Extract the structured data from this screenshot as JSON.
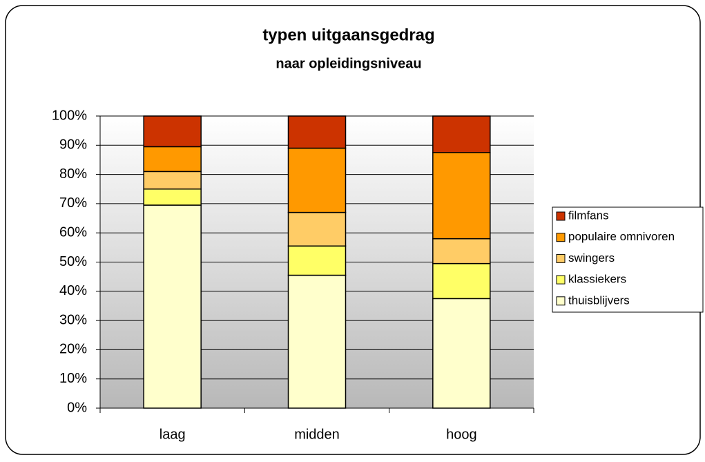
{
  "chart_data": {
    "type": "stacked_bar",
    "title": "typen uitgaansgedrag",
    "subtitle": "naar opleidingsniveau",
    "categories": [
      "laag",
      "midden",
      "hoog"
    ],
    "series": [
      {
        "name": "thuisblijvers",
        "color": "#FFFFCC",
        "values": [
          69.5,
          45.5,
          37.5
        ]
      },
      {
        "name": "klassiekers",
        "color": "#FFFF66",
        "values": [
          5.5,
          10,
          12
        ]
      },
      {
        "name": "swingers",
        "color": "#FFCC66",
        "values": [
          6,
          11.5,
          8.5
        ]
      },
      {
        "name": "populaire omnivoren",
        "color": "#FF9900",
        "values": [
          8.5,
          22,
          29.5
        ]
      },
      {
        "name": "filmfans",
        "color": "#CC3300",
        "values": [
          10.5,
          11,
          12.5
        ]
      }
    ],
    "ylim": [
      0,
      100
    ],
    "yticks": [
      {
        "value": 0,
        "label": "0%"
      },
      {
        "value": 10,
        "label": "10%"
      },
      {
        "value": 20,
        "label": "20%"
      },
      {
        "value": 30,
        "label": "30%"
      },
      {
        "value": 40,
        "label": "40%"
      },
      {
        "value": 50,
        "label": "50%"
      },
      {
        "value": 60,
        "label": "60%"
      },
      {
        "value": 70,
        "label": "70%"
      },
      {
        "value": 80,
        "label": "80%"
      },
      {
        "value": 90,
        "label": "90%"
      },
      {
        "value": 100,
        "label": "100%"
      }
    ],
    "grid": true,
    "legend": "right"
  }
}
